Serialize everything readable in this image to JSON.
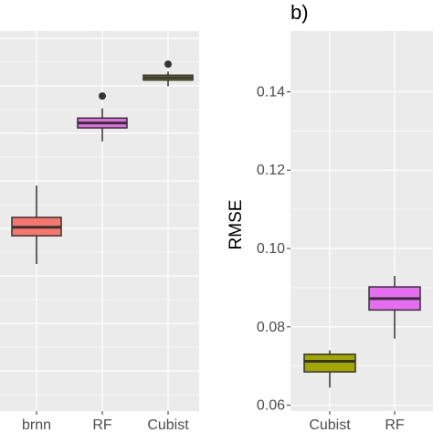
{
  "chart_data": [
    {
      "type": "boxplot",
      "panel_tag": "",
      "ylabel": "",
      "categories": [
        "brnn",
        "RF",
        "Cubist"
      ],
      "boxes": [
        {
          "category": "brnn",
          "min": 0.2,
          "q1": 0.43,
          "median": 0.5,
          "q3": 0.58,
          "max": 0.84,
          "outliers": [],
          "color": "#f8766d"
        },
        {
          "category": "RF",
          "min": 1.2,
          "q1": 1.31,
          "median": 1.35,
          "q3": 1.39,
          "max": 1.47,
          "outliers": [
            1.57
          ],
          "color": "#e66be6"
        },
        {
          "category": "Cubist",
          "min": 1.65,
          "q1": 1.7,
          "median": 1.72,
          "q3": 1.74,
          "max": 1.77,
          "outliers": [
            1.83
          ],
          "color": "#b5b800"
        }
      ],
      "y_ticks": [],
      "ylim": [
        -1.0,
        2.1
      ],
      "grid": true
    },
    {
      "type": "boxplot",
      "panel_tag": "b)",
      "ylabel": "RMSE",
      "categories": [
        "Cubist",
        "RF"
      ],
      "boxes": [
        {
          "category": "Cubist",
          "min": 0.0645,
          "q1": 0.0685,
          "median": 0.0712,
          "q3": 0.073,
          "max": 0.074,
          "outliers": [],
          "color": "#a3a500"
        },
        {
          "category": "RF",
          "min": 0.077,
          "q1": 0.0843,
          "median": 0.0872,
          "q3": 0.0902,
          "max": 0.093,
          "outliers": [],
          "color": "#e76bf3"
        }
      ],
      "y_ticks": [
        "0.06",
        "0.08",
        "0.10",
        "0.12",
        "0.14"
      ],
      "ylim": [
        0.0585,
        0.1555
      ],
      "grid": true
    }
  ]
}
